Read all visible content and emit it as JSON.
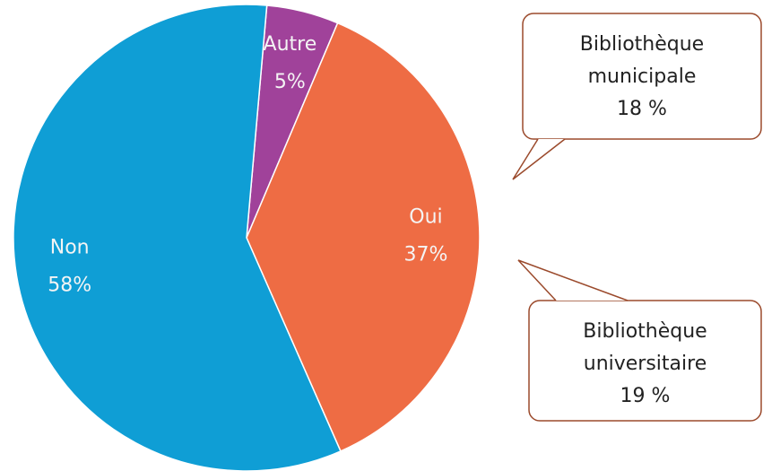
{
  "chart_data": {
    "type": "pie",
    "categories": [
      "Autre",
      "Oui",
      "Non"
    ],
    "values": [
      5,
      37,
      58
    ],
    "value_labels": [
      "5%",
      "37%",
      "58%"
    ],
    "colors": [
      "#a0429a",
      "#ee6c44",
      "#0f9ed5"
    ],
    "annotations": [
      {
        "lines": [
          "Bibliothèque",
          "municipale",
          "18 %"
        ]
      },
      {
        "lines": [
          "Bibliothèque",
          "universitaire",
          "19 %"
        ]
      }
    ]
  }
}
